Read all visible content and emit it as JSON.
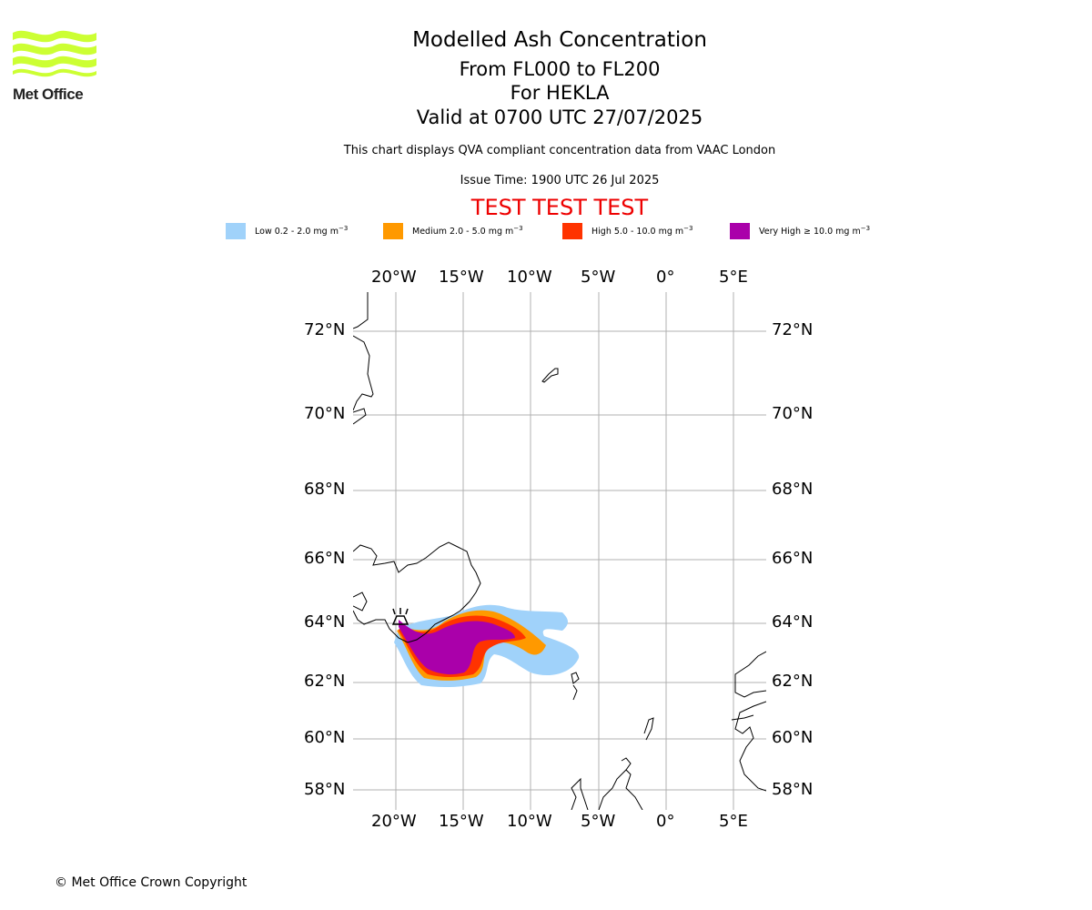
{
  "header": {
    "title": "Modelled Ash Concentration",
    "subtitle_levels": "From FL000 to FL200",
    "subtitle_volcano": "For HEKLA",
    "subtitle_valid": "Valid at 0700 UTC 27/07/2025",
    "description": "This chart displays QVA compliant concentration data from VAAC London",
    "issue_time": "Issue Time: 1900 UTC 26 Jul 2025",
    "test_banner": "TEST TEST TEST"
  },
  "logo": {
    "text": "Met Office",
    "color": "#ccff33"
  },
  "legend": [
    {
      "label": "Low 0.2 - 2.0 mg m",
      "unit_exp": "−3",
      "color": "#a0d2fa"
    },
    {
      "label": "Medium 2.0 - 5.0 mg m",
      "unit_exp": "−3",
      "color": "#ff9900"
    },
    {
      "label": "High 5.0 - 10.0 mg m",
      "unit_exp": "−3",
      "color": "#ff3300"
    },
    {
      "label": "Very High  ≥  10.0 mg m",
      "unit_exp": "−3",
      "color": "#aa00aa"
    }
  ],
  "map": {
    "lon_ticks": [
      "20°W",
      "15°W",
      "10°W",
      "5°W",
      "0°",
      "5°E"
    ],
    "lat_ticks": [
      "72°N",
      "70°N",
      "68°N",
      "66°N",
      "64°N",
      "62°N",
      "60°N",
      "58°N"
    ],
    "volcano_icon": "volcano-icon"
  },
  "footer": {
    "copyright": "© Met Office Crown Copyright"
  }
}
